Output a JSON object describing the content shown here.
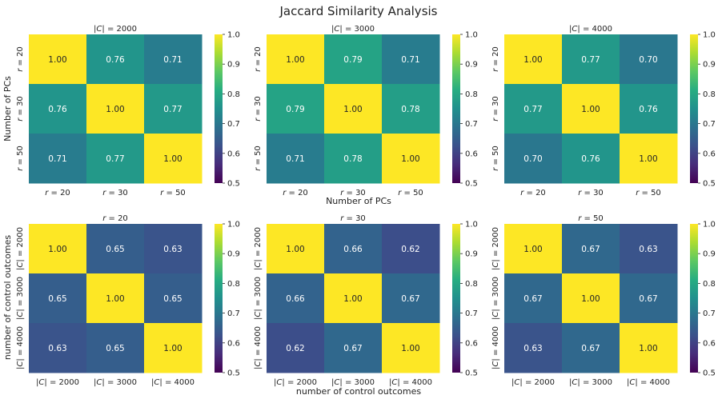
{
  "figure": {
    "title": "Jaccard Similarity Analysis",
    "row1_xlabel": "Number of PCs",
    "row1_ylabel": "Number of PCs",
    "row2_xlabel": "number of control outcomes",
    "row2_ylabel": "number of control outcomes"
  },
  "colormap": {
    "name": "viridis",
    "vmin": 0.5,
    "vmax": 1.0,
    "ticks": [
      "0.5",
      "0.6",
      "0.7",
      "0.8",
      "0.9",
      "1.0"
    ],
    "stops": [
      "#440154",
      "#472c7a",
      "#3b518b",
      "#2c718e",
      "#21908d",
      "#27ad81",
      "#5cc863",
      "#aadc32",
      "#fde725"
    ]
  },
  "chart_data": [
    {
      "type": "heatmap",
      "title": "|C| = 2000",
      "row_labels": [
        "r = 20",
        "r = 30",
        "r = 50"
      ],
      "col_labels": [
        "r = 20",
        "r = 30",
        "r = 50"
      ],
      "values": [
        [
          1.0,
          0.76,
          0.71
        ],
        [
          0.76,
          1.0,
          0.77
        ],
        [
          0.71,
          0.77,
          1.0
        ]
      ]
    },
    {
      "type": "heatmap",
      "title": "|C| = 3000",
      "row_labels": [
        "r = 20",
        "r = 30",
        "r = 50"
      ],
      "col_labels": [
        "r = 20",
        "r = 30",
        "r = 50"
      ],
      "values": [
        [
          1.0,
          0.79,
          0.71
        ],
        [
          0.79,
          1.0,
          0.78
        ],
        [
          0.71,
          0.78,
          1.0
        ]
      ]
    },
    {
      "type": "heatmap",
      "title": "|C| = 4000",
      "row_labels": [
        "r = 20",
        "r = 30",
        "r = 50"
      ],
      "col_labels": [
        "r = 20",
        "r = 30",
        "r = 50"
      ],
      "values": [
        [
          1.0,
          0.77,
          0.7
        ],
        [
          0.77,
          1.0,
          0.76
        ],
        [
          0.7,
          0.76,
          1.0
        ]
      ]
    },
    {
      "type": "heatmap",
      "title": "r = 20",
      "row_labels": [
        "|C| = 2000",
        "|C| = 3000",
        "|C| = 4000"
      ],
      "col_labels": [
        "|C| = 2000",
        "|C| = 3000",
        "|C| = 4000"
      ],
      "values": [
        [
          1.0,
          0.65,
          0.63
        ],
        [
          0.65,
          1.0,
          0.65
        ],
        [
          0.63,
          0.65,
          1.0
        ]
      ]
    },
    {
      "type": "heatmap",
      "title": "r = 30",
      "row_labels": [
        "|C| = 2000",
        "|C| = 3000",
        "|C| = 4000"
      ],
      "col_labels": [
        "|C| = 2000",
        "|C| = 3000",
        "|C| = 4000"
      ],
      "values": [
        [
          1.0,
          0.66,
          0.62
        ],
        [
          0.66,
          1.0,
          0.67
        ],
        [
          0.62,
          0.67,
          1.0
        ]
      ]
    },
    {
      "type": "heatmap",
      "title": "r = 50",
      "row_labels": [
        "|C| = 2000",
        "|C| = 3000",
        "|C| = 4000"
      ],
      "col_labels": [
        "|C| = 2000",
        "|C| = 3000",
        "|C| = 4000"
      ],
      "values": [
        [
          1.0,
          0.67,
          0.63
        ],
        [
          0.67,
          1.0,
          0.67
        ],
        [
          0.63,
          0.67,
          1.0
        ]
      ]
    }
  ]
}
